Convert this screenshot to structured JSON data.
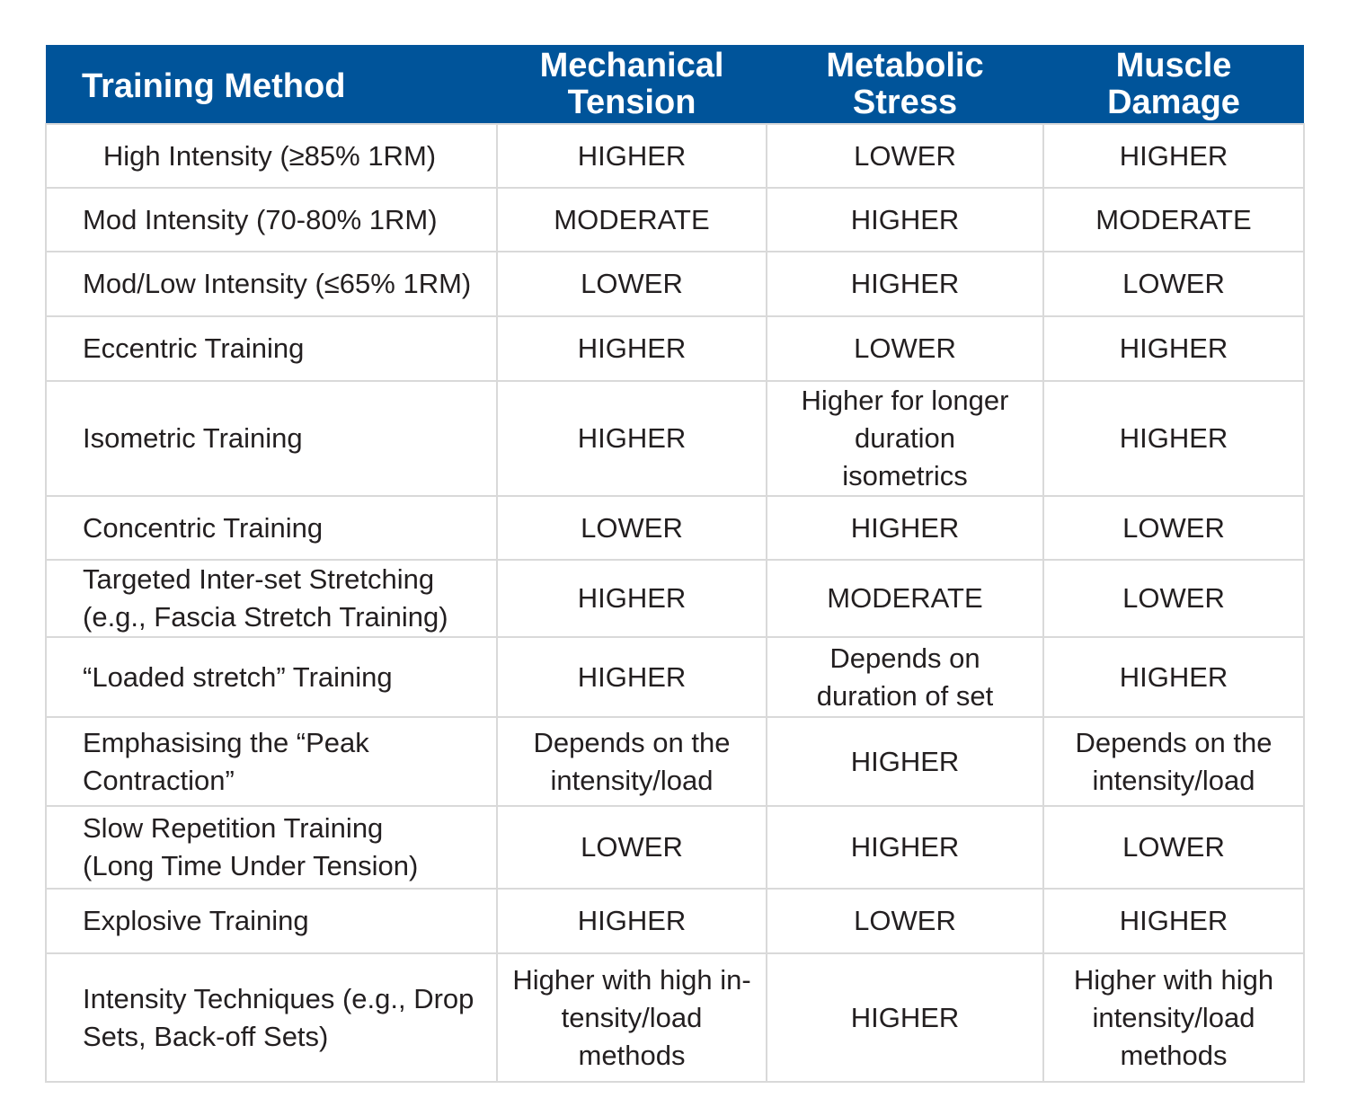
{
  "table": {
    "headers": [
      "Training Method",
      "Mechanical\nTension",
      "Metabolic\nStress",
      "Muscle\nDamage"
    ],
    "rows": [
      {
        "method": "High Intensity (≥85% 1RM)",
        "mechanical": "HIGHER",
        "metabolic": "LOWER",
        "damage": "HIGHER",
        "height": 69
      },
      {
        "method": "Mod Intensity (70-80% 1RM)",
        "mechanical": "MODERATE",
        "metabolic": "HIGHER",
        "damage": "MODERATE",
        "height": 69
      },
      {
        "method": "Mod/Low Intensity (≤65% 1RM)",
        "mechanical": "LOWER",
        "metabolic": "HIGHER",
        "damage": "LOWER",
        "height": 70
      },
      {
        "method": "Eccentric Training",
        "mechanical": "HIGHER",
        "metabolic": "LOWER",
        "damage": "HIGHER",
        "height": 70
      },
      {
        "method": "Isometric Training",
        "mechanical": "HIGHER",
        "metabolic": "Higher for longer\nduration\nisometrics",
        "damage": "HIGHER",
        "height": 123
      },
      {
        "method": "Concentric Training",
        "mechanical": "LOWER",
        "metabolic": "HIGHER",
        "damage": "LOWER",
        "height": 69
      },
      {
        "method": "Targeted Inter-set Stretching\n(e.g., Fascia Stretch Training)",
        "mechanical": "HIGHER",
        "metabolic": "MODERATE",
        "damage": "LOWER",
        "height": 76
      },
      {
        "method": "“Loaded stretch” Training",
        "mechanical": "HIGHER",
        "metabolic": "Depends on\nduration of set",
        "damage": "HIGHER",
        "height": 87
      },
      {
        "method": "Emphasising the “Peak\nContraction”",
        "mechanical": "Depends on the\nintensity/load",
        "metabolic": "HIGHER",
        "damage": "Depends on the\nintensity/load",
        "height": 97
      },
      {
        "method": "Slow Repetition Training\n(Long Time Under Tension)",
        "mechanical": "LOWER",
        "metabolic": "HIGHER",
        "damage": "LOWER",
        "height": 90
      },
      {
        "method": "Explosive Training",
        "mechanical": "HIGHER",
        "metabolic": "LOWER",
        "damage": "HIGHER",
        "height": 70
      },
      {
        "method": "Intensity Techniques (e.g., Drop\nSets, Back-off Sets)",
        "mechanical": "Higher with high in-\ntensity/load\nmethods",
        "metabolic": "HIGHER",
        "damage": "Higher with high\nintensity/load\nmethods",
        "height": 141
      }
    ]
  }
}
